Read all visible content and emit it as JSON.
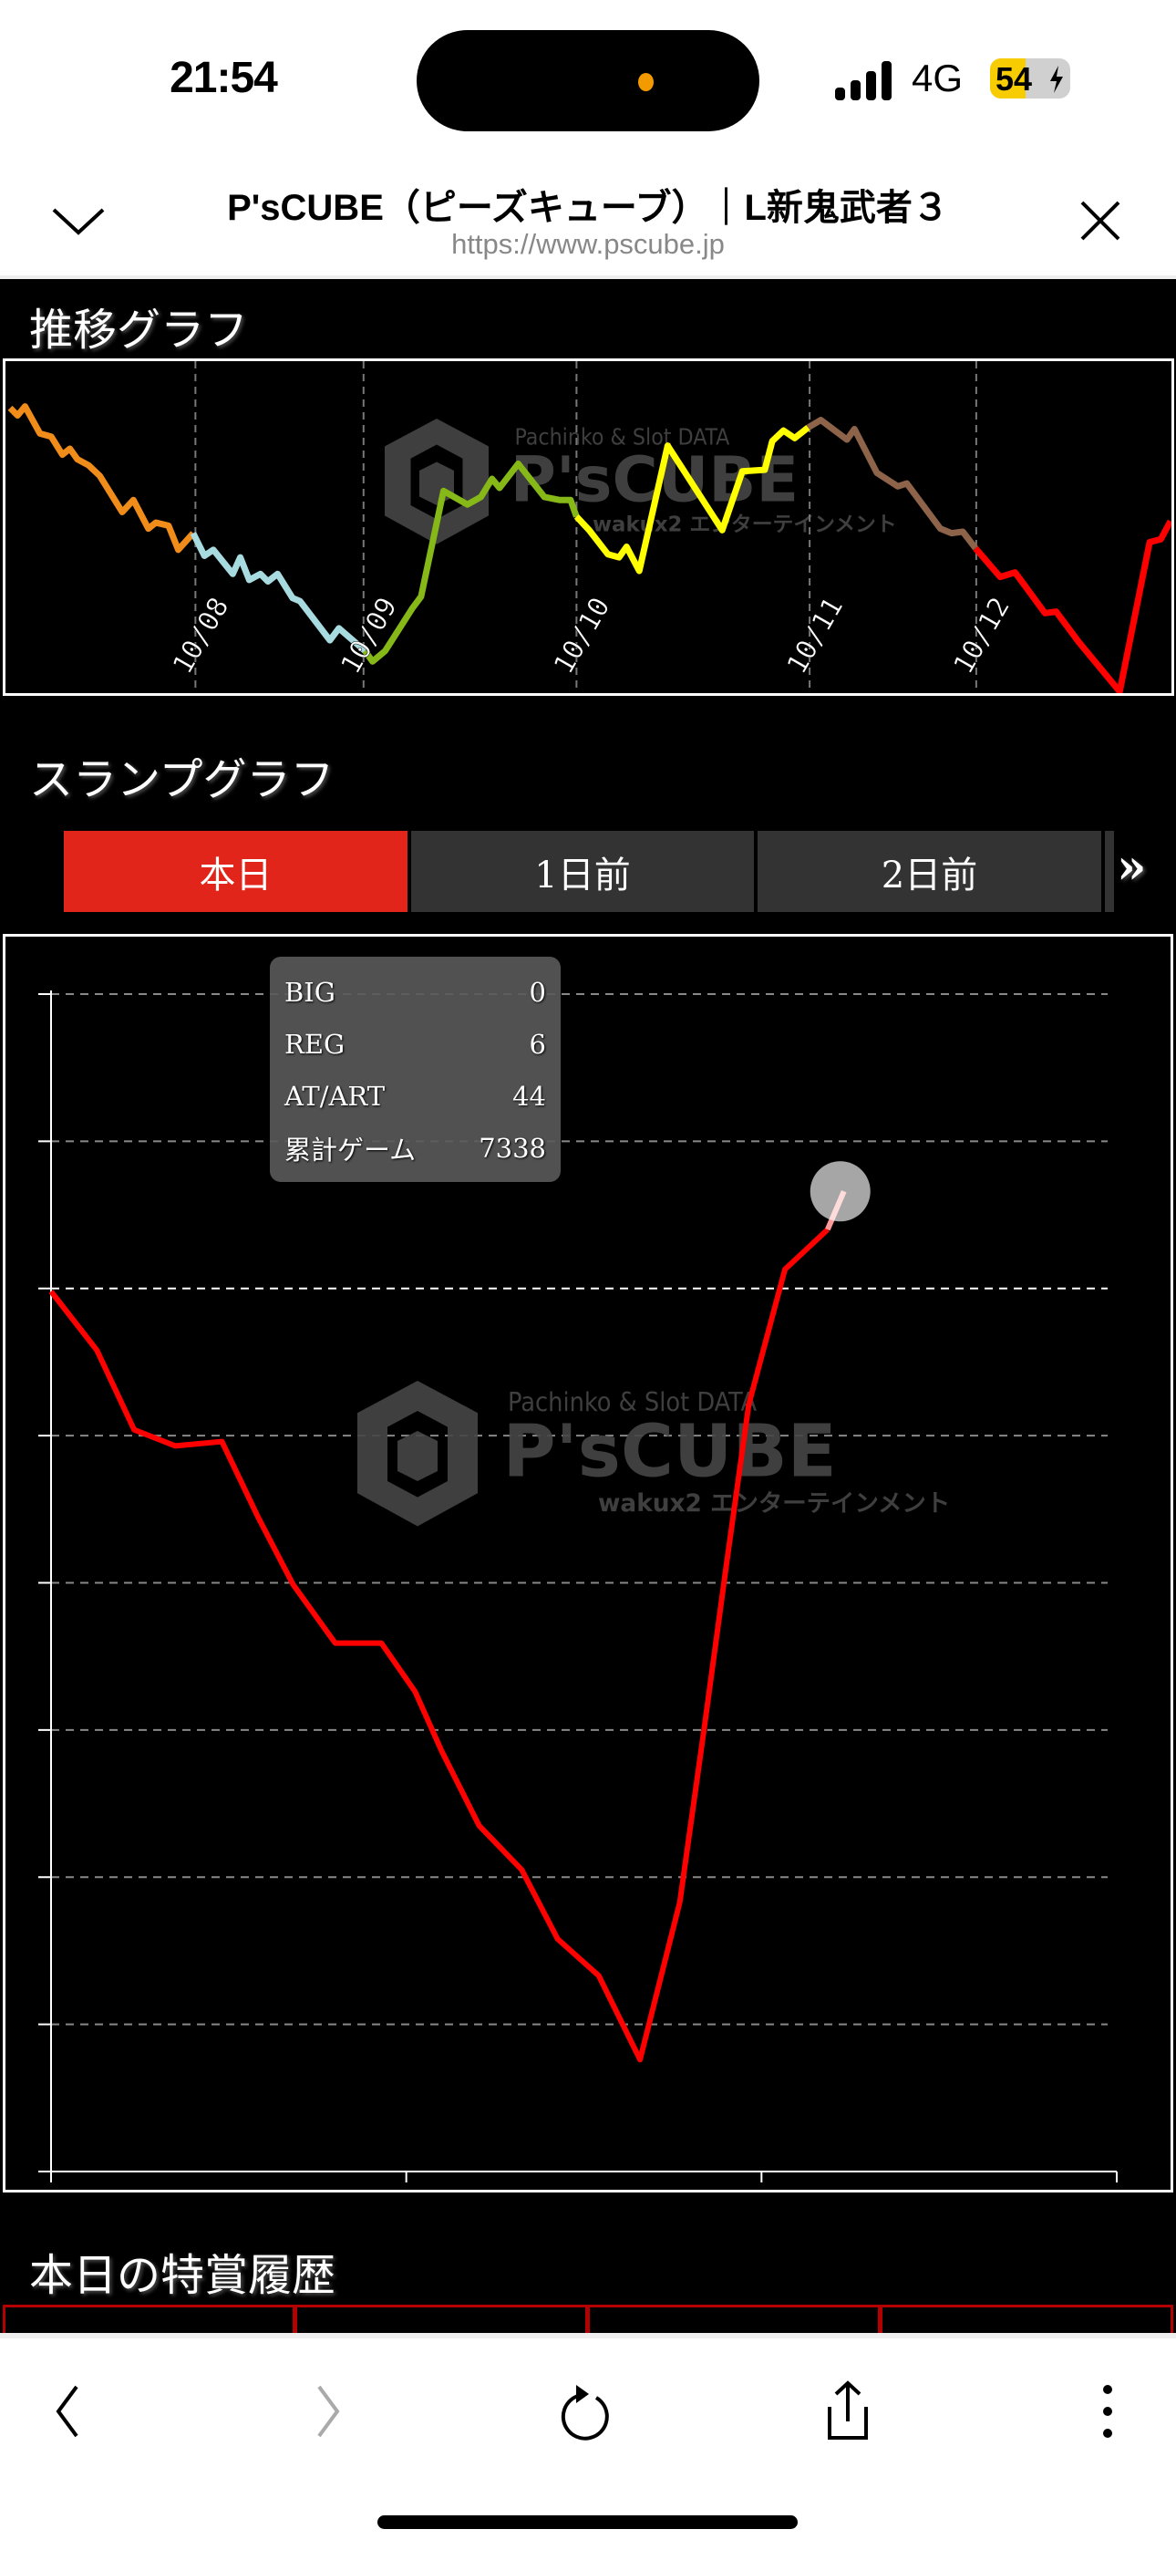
{
  "status_bar": {
    "time": "21:54",
    "network": "4G",
    "battery_percent": 54,
    "battery_label": "54",
    "charging": true
  },
  "browser_header": {
    "title": "P'sCUBE（ピーズキューブ）｜L新鬼武者３",
    "url": "https://www.pscube.jp",
    "chevron_icon": "chevron-down-icon",
    "close_icon": "close-icon"
  },
  "watermark": {
    "line1": "Pachinko & Slot DATA",
    "logo": "P'sCUBE",
    "line2": "wakux2 エンターテインメント"
  },
  "trend": {
    "heading": "推移グラフ",
    "chart_data": {
      "type": "line",
      "date_labels": [
        {
          "label": "10/08",
          "x": 25.3
        },
        {
          "label": "10/09",
          "x": 47.8
        },
        {
          "label": "10/10",
          "x": 76.3
        },
        {
          "label": "10/11",
          "x": 107.5
        },
        {
          "label": "10/12",
          "x": 129.8
        }
      ],
      "xlim": [
        0,
        155.8
      ],
      "ylim": [
        0,
        110
      ],
      "series": [
        {
          "color": "#f08c1a",
          "x": [
            0.5,
            1.5,
            2.5,
            4.5,
            6,
            7.5,
            8.5,
            9.5,
            11,
            12.5,
            15.5,
            17,
            19,
            20,
            21.7,
            23,
            25
          ],
          "y": [
            94.5,
            92,
            95,
            86,
            85,
            79,
            81,
            77.5,
            75.5,
            72,
            60,
            64,
            54.5,
            56.5,
            55.5,
            47.5,
            53
          ]
        },
        {
          "color": "#a8dbe0",
          "x": [
            25,
            26.5,
            27.7,
            30.3,
            31.3,
            32.5,
            34,
            35,
            36.3,
            38.3,
            39.3,
            43.3,
            44.5,
            48
          ],
          "y": [
            53,
            45.5,
            47.5,
            39.5,
            45,
            37.5,
            39.5,
            37,
            39.5,
            31.5,
            30.5,
            17.5,
            21.5,
            14
          ]
        },
        {
          "color": "#86b818",
          "x": [
            48,
            49,
            50.7,
            54.3,
            55.5,
            58.5,
            61.7,
            63.5,
            65,
            66,
            68.5,
            72,
            74,
            75.5,
            76.3
          ],
          "y": [
            14,
            10.5,
            14,
            28,
            32,
            67,
            62.5,
            65,
            71,
            68,
            76,
            65,
            64,
            64,
            58.5
          ]
        },
        {
          "color": "#ffff00",
          "x": [
            76.3,
            78,
            80.5,
            82,
            83,
            84.7,
            88.5,
            95.8,
            98.5,
            101.5,
            102.5,
            104,
            105.5,
            107.3
          ],
          "y": [
            58.5,
            54,
            46,
            45,
            48.5,
            40.5,
            82,
            54,
            73.5,
            74,
            83.5,
            87,
            84.5,
            88
          ]
        },
        {
          "color": "#8d6349",
          "x": [
            107.3,
            109,
            112.5,
            113.5,
            116.5,
            119.3,
            120.5,
            125,
            126.5,
            128,
            129.7
          ],
          "y": [
            88,
            90.5,
            84,
            87.5,
            73,
            68.5,
            69.5,
            54.5,
            53,
            53.5,
            48
          ]
        },
        {
          "color": "#ff0000",
          "x": [
            129.7,
            133,
            135,
            139,
            140.5,
            143.5,
            147,
            149,
            153,
            154.5,
            155.8
          ],
          "y": [
            48,
            38.5,
            40,
            26.5,
            27,
            17,
            6.5,
            0.5,
            50,
            51,
            57
          ]
        }
      ]
    }
  },
  "slump": {
    "heading": "スランプグラフ",
    "tabs": [
      {
        "label": "本日",
        "active": true
      },
      {
        "label": "1日前",
        "active": false
      },
      {
        "label": "2日前",
        "active": false
      }
    ],
    "more_label": "»",
    "tooltip": [
      {
        "label": "BIG",
        "value": "0"
      },
      {
        "label": "REG",
        "value": "6"
      },
      {
        "label": "AT/ART",
        "value": "44"
      },
      {
        "label": "累計ゲーム",
        "value": "7338"
      }
    ],
    "chart_data": {
      "type": "line",
      "color": "#ff0000",
      "grid": true,
      "xlim": [
        0,
        3
      ],
      "ylim": [
        -6,
        2
      ],
      "x_ticks": [
        0,
        1,
        2,
        3
      ],
      "y_grid": [
        2,
        1,
        0,
        -1,
        -2,
        -3,
        -4,
        -5
      ],
      "x": [
        0,
        0.129,
        0.234,
        0.35,
        0.481,
        0.582,
        0.681,
        0.8,
        0.93,
        1.025,
        1.099,
        1.205,
        1.325,
        1.426,
        1.542,
        1.658,
        1.77,
        1.838,
        1.901,
        1.964,
        2.066,
        2.186,
        2.232
      ],
      "y": [
        -0.02,
        -0.42,
        -0.96,
        -1.07,
        -1.04,
        -1.55,
        -2.01,
        -2.41,
        -2.41,
        -2.74,
        -3.14,
        -3.65,
        -3.95,
        -4.42,
        -4.67,
        -5.24,
        -4.17,
        -3.0,
        -1.88,
        -0.79,
        0.13,
        0.4,
        0.66
      ]
    }
  },
  "history": {
    "heading": "本日の特賞履歴"
  },
  "toolbar": {
    "icons": [
      "back-icon",
      "forward-icon",
      "reload-icon",
      "share-icon",
      "more-icon"
    ]
  }
}
